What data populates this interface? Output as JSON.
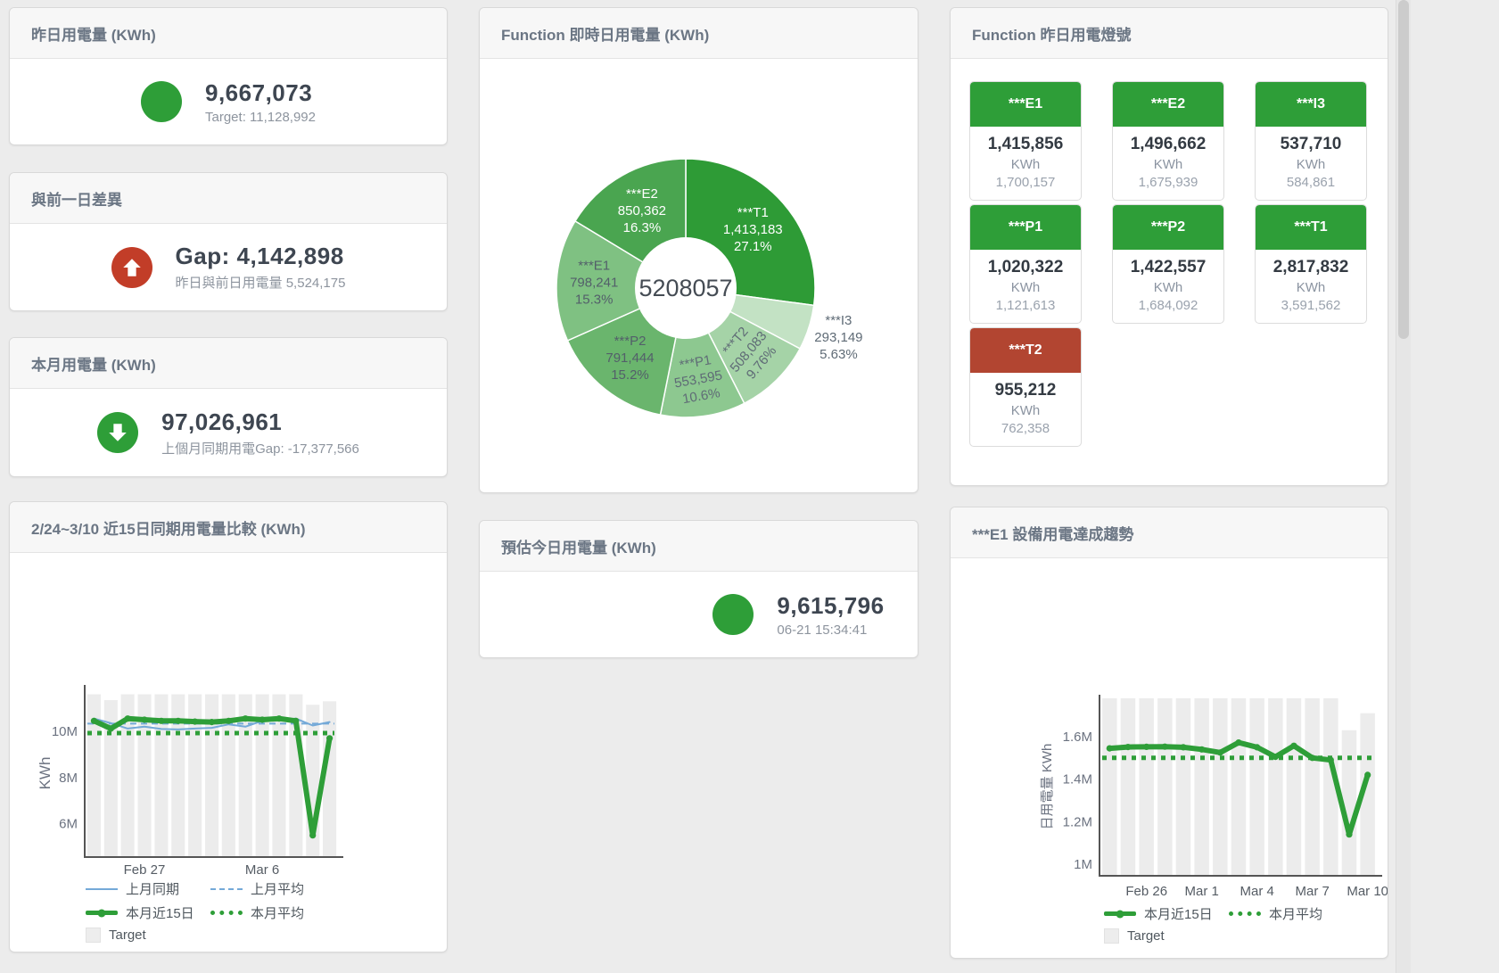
{
  "colors": {
    "green": "#2e9e38",
    "red_circle": "#c23d28",
    "red_tile": "#b24531",
    "blue_line": "#74a9d8",
    "bar_gray": "#ececec",
    "axis_text": "#6b7280"
  },
  "cards": {
    "yesterday": {
      "title": "昨日用電量 (KWh)",
      "value": "9,667,073",
      "subtitle": "Target: 11,128,992",
      "indicator": "green-circle"
    },
    "gap": {
      "title": "與前一日差異",
      "value": "Gap: 4,142,898",
      "subtitle": "昨日與前日用電量 5,524,175",
      "indicator": "red-circle-up-arrow"
    },
    "month": {
      "title": "本月用電量 (KWh)",
      "value": "97,026,961",
      "subtitle": "上個月同期用電Gap: -17,377,566",
      "indicator": "green-circle-down-arrow"
    },
    "estimate": {
      "title": "預估今日用電量 (KWh)",
      "value": "9,615,796",
      "subtitle": "06-21 15:34:41",
      "indicator": "green-circle"
    }
  },
  "lights_card": {
    "title": "Function 昨日用電燈號",
    "unit": "KWh",
    "tiles": [
      {
        "name": "***E1",
        "value": "1,415,856",
        "unit": "KWh",
        "target": "1,700,157",
        "status_color": "#2e9e38"
      },
      {
        "name": "***E2",
        "value": "1,496,662",
        "unit": "KWh",
        "target": "1,675,939",
        "status_color": "#2e9e38"
      },
      {
        "name": "***I3",
        "value": "537,710",
        "unit": "KWh",
        "target": "584,861",
        "status_color": "#2e9e38"
      },
      {
        "name": "***P1",
        "value": "1,020,322",
        "unit": "KWh",
        "target": "1,121,613",
        "status_color": "#2e9e38"
      },
      {
        "name": "***P2",
        "value": "1,422,557",
        "unit": "KWh",
        "target": "1,684,092",
        "status_color": "#2e9e38"
      },
      {
        "name": "***T1",
        "value": "2,817,832",
        "unit": "KWh",
        "target": "3,591,562",
        "status_color": "#2e9e38"
      },
      {
        "name": "***T2",
        "value": "955,212",
        "unit": "KWh",
        "target": "762,358",
        "status_color": "#b24531"
      }
    ]
  },
  "chart_data": [
    {
      "type": "pie",
      "subtype": "donut",
      "title": "Function 即時日用電量 (KWh)",
      "center_label": "5208057",
      "slices": [
        {
          "name": "***T1",
          "value": 1413183,
          "display": "1,413,183",
          "pct": "27.1%",
          "color": "#2e9b36",
          "label_color": "#ffffff",
          "label_r": 100,
          "rotate": 0,
          "outside": false
        },
        {
          "name": "***I3",
          "value": 293149,
          "display": "293,149",
          "pct": "5.63%",
          "color": "#c3e2c4",
          "label_color": "#5f6b76",
          "label_r": 180,
          "rotate": 0,
          "outside": true
        },
        {
          "name": "***T2",
          "value": 508083,
          "display": "508,083",
          "pct": "9.76%",
          "color": "#a5d3a7",
          "label_color": "#5f6b76",
          "label_r": 100,
          "rotate": -50,
          "outside": false
        },
        {
          "name": "***P1",
          "value": 553595,
          "display": "553,595",
          "pct": "10.6%",
          "color": "#8dc890",
          "label_color": "#5f6b76",
          "label_r": 103,
          "rotate": -10,
          "outside": false
        },
        {
          "name": "***P2",
          "value": 791444,
          "display": "791,444",
          "pct": "15.2%",
          "color": "#6ab56d",
          "label_color": "#535f6a",
          "label_r": 100,
          "rotate": 0,
          "outside": false
        },
        {
          "name": "***E1",
          "value": 798241,
          "display": "798,241",
          "pct": "15.3%",
          "color": "#7fc182",
          "label_color": "#535f6a",
          "label_r": 103,
          "rotate": 0,
          "outside": false
        },
        {
          "name": "***E2",
          "value": 850362,
          "display": "850,362",
          "pct": "16.3%",
          "color": "#4aa550",
          "label_color": "#ffffff",
          "label_r": 100,
          "rotate": 0,
          "outside": false
        }
      ]
    },
    {
      "type": "line",
      "subtype": "line+bar",
      "title": "2/24~3/10 近15日同期用電量比較 (KWh)",
      "ylabel": "KWh",
      "unit_scale": "values in millions of KWh",
      "ylim": [
        4.6,
        11.85
      ],
      "yticks": [
        {
          "label": "6M",
          "value": 6
        },
        {
          "label": "8M",
          "value": 8
        },
        {
          "label": "10M",
          "value": 10
        }
      ],
      "x_count": 15,
      "xticks": [
        {
          "label": "Feb 27",
          "index": 3
        },
        {
          "label": "Mar 6",
          "index": 10
        }
      ],
      "series": [
        {
          "name": "Target",
          "type": "bar",
          "color": "#ececec",
          "values": [
            11.6,
            11.35,
            11.6,
            11.6,
            11.6,
            11.6,
            11.6,
            11.6,
            11.6,
            11.6,
            11.6,
            11.6,
            11.6,
            11.15,
            11.3
          ]
        },
        {
          "name": "上月同期",
          "type": "line",
          "dash": "solid",
          "color": "#74a9d8",
          "width": 2,
          "values": [
            10.55,
            10.35,
            10.12,
            10.2,
            10.1,
            10.08,
            10.12,
            10.15,
            10.3,
            10.2,
            10.45,
            10.5,
            10.55,
            10.25,
            10.4
          ]
        },
        {
          "name": "上月平均",
          "type": "avg-line",
          "dash": "dashed",
          "color": "#74a9d8",
          "width": 2,
          "value": 10.33
        },
        {
          "name": "本月近15日",
          "type": "line",
          "dash": "solid",
          "color": "#2e9e38",
          "width": 6,
          "values": [
            10.45,
            10.12,
            10.55,
            10.5,
            10.45,
            10.45,
            10.42,
            10.4,
            10.45,
            10.55,
            10.5,
            10.55,
            10.45,
            5.5,
            9.7
          ]
        },
        {
          "name": "本月平均",
          "type": "avg-line",
          "dash": "dotted",
          "color": "#2e9e38",
          "width": 5,
          "value": 9.92
        }
      ],
      "legend": [
        {
          "label": "上月同期",
          "swatch": "line-blue"
        },
        {
          "label": "上月平均",
          "swatch": "dash-blue"
        },
        {
          "label": "本月近15日",
          "swatch": "thick-green"
        },
        {
          "label": "本月平均",
          "swatch": "dot-green"
        },
        {
          "label": "Target",
          "swatch": "square-gray"
        }
      ]
    },
    {
      "type": "line",
      "subtype": "line+bar",
      "title": "***E1 設備用電達成趨勢",
      "ylabel": "日用電量 KWh",
      "unit_scale": "values in millions of KWh",
      "ylim": [
        0.95,
        1.78
      ],
      "yticks": [
        {
          "label": "1M",
          "value": 1
        },
        {
          "label": "1.2M",
          "value": 1.2
        },
        {
          "label": "1.4M",
          "value": 1.4
        },
        {
          "label": "1.6M",
          "value": 1.6
        }
      ],
      "x_count": 15,
      "xticks": [
        {
          "label": "Feb 26",
          "index": 2
        },
        {
          "label": "Mar 1",
          "index": 5
        },
        {
          "label": "Mar 4",
          "index": 8
        },
        {
          "label": "Mar 7",
          "index": 11
        },
        {
          "label": "Mar 10",
          "index": 14
        }
      ],
      "series": [
        {
          "name": "Target",
          "type": "bar",
          "color": "#ececec",
          "values": [
            1.78,
            1.78,
            1.78,
            1.78,
            1.78,
            1.78,
            1.78,
            1.78,
            1.78,
            1.78,
            1.78,
            1.78,
            1.78,
            1.63,
            1.71
          ]
        },
        {
          "name": "本月近15日",
          "type": "line",
          "dash": "solid",
          "color": "#2e9e38",
          "width": 6,
          "values": [
            1.545,
            1.551,
            1.552,
            1.553,
            1.55,
            1.54,
            1.525,
            1.572,
            1.55,
            1.505,
            1.557,
            1.5,
            1.49,
            1.14,
            1.42
          ]
        },
        {
          "name": "本月平均",
          "type": "avg-line",
          "dash": "dotted",
          "color": "#2e9e38",
          "width": 5,
          "value": 1.5
        }
      ],
      "legend": [
        {
          "label": "本月近15日",
          "swatch": "thick-green"
        },
        {
          "label": "本月平均",
          "swatch": "dot-green"
        },
        {
          "label": "Target",
          "swatch": "square-gray"
        }
      ]
    }
  ]
}
